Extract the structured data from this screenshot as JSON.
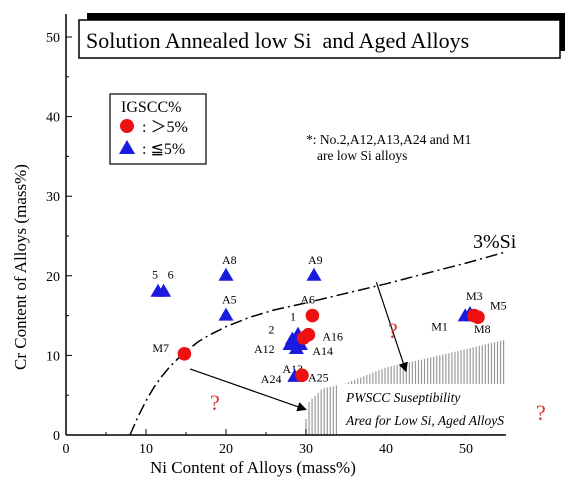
{
  "chart_data": {
    "type": "scatter",
    "title": "Solution Annealed low Si  and Aged Alloys",
    "xlabel": "Ni Content of Alloys (mass%)",
    "ylabel": "Cr Content of Alloys (mass%)",
    "xlim": [
      0,
      55
    ],
    "ylim": [
      0,
      52
    ],
    "xticks": [
      0,
      10,
      20,
      30,
      40,
      50
    ],
    "yticks": [
      0,
      10,
      20,
      30,
      40,
      50
    ],
    "legend": {
      "title": "IGSCC%",
      "placement": "upper-left",
      "entries": [
        {
          "marker": "circle",
          "label": ": ＞5%"
        },
        {
          "marker": "triangle",
          "label": ": ≦5%"
        }
      ]
    },
    "colors": {
      "circle": "#ee1111",
      "triangle": "#1a1ae0",
      "hatch": "#9a9a9a"
    },
    "note_lines": [
      "*: No.2,A12,A13,A24 and M1",
      "are low Si alloys"
    ],
    "si_curve_label": "3%Si",
    "pwscc_lines": [
      "PWSCC Suseptibility",
      "Area for Low Si, Aged AlloyS"
    ],
    "question_mark": "?",
    "circle_series": [
      {
        "label": "M7",
        "x": 14.8,
        "y": 10.2
      },
      {
        "label": "A6",
        "x": 30.8,
        "y": 15.0
      },
      {
        "label": "A16",
        "x": 30.3,
        "y": 12.6
      },
      {
        "label": "",
        "x": 29.7,
        "y": 12.2
      },
      {
        "label": "A25",
        "x": 29.5,
        "y": 7.5
      },
      {
        "label": "M5",
        "x": 51.0,
        "y": 15.0
      },
      {
        "label": "M8",
        "x": 51.5,
        "y": 14.8
      }
    ],
    "triangle_series": [
      {
        "label": "5",
        "x": 11.5,
        "y": 18.0
      },
      {
        "label": "6",
        "x": 12.2,
        "y": 18.0
      },
      {
        "label": "A8",
        "x": 20.0,
        "y": 20.0
      },
      {
        "label": "A9",
        "x": 31.0,
        "y": 20.0
      },
      {
        "label": "A5",
        "x": 20.0,
        "y": 15.0
      },
      {
        "label": "2",
        "x": 28.3,
        "y": 12.0
      },
      {
        "label": "1",
        "x": 29.0,
        "y": 12.6
      },
      {
        "label": "A12",
        "x": 28.0,
        "y": 11.3
      },
      {
        "label": "A13",
        "x": 28.8,
        "y": 10.8
      },
      {
        "label": "A14",
        "x": 29.3,
        "y": 11.3
      },
      {
        "label": "A24",
        "x": 28.6,
        "y": 7.3
      },
      {
        "label": "M1",
        "x": 49.9,
        "y": 14.9
      },
      {
        "label": "M3",
        "x": 50.5,
        "y": 15.2
      }
    ]
  }
}
